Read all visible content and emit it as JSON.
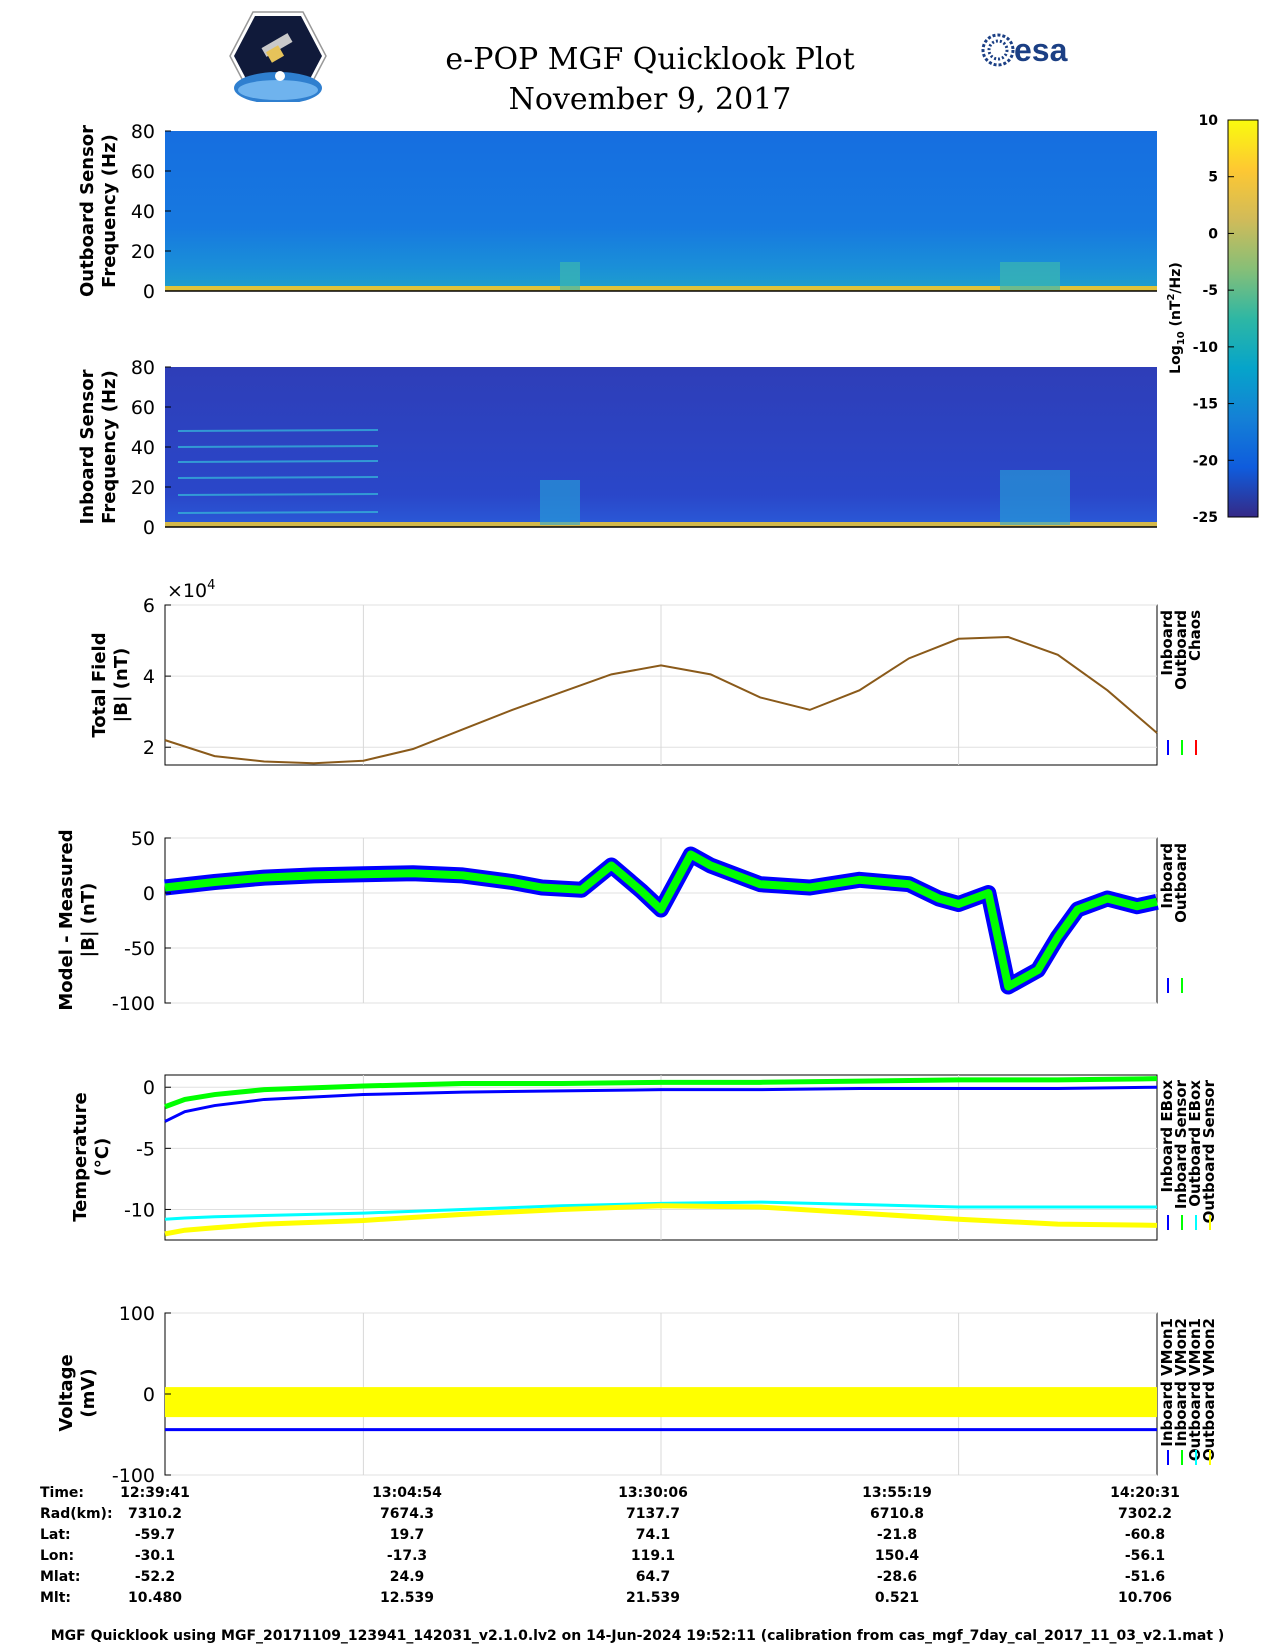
{
  "header": {
    "title": "e-POP MGF Quicklook Plot",
    "date": "November 9, 2017",
    "esa_logo_text": "esa"
  },
  "colorbar": {
    "label_base": "Log",
    "label_sub": "10",
    "label_unit_pre": " (nT",
    "label_sup": "2",
    "label_unit_post": "/Hz)",
    "ticks": [
      "10",
      "5",
      "0",
      "-5",
      "-10",
      "-15",
      "-20",
      "-25"
    ],
    "colors": [
      "#352a87",
      "#0f5cdd",
      "#1481d6",
      "#06a4ca",
      "#2eb7a4",
      "#87bf77",
      "#d1bb59",
      "#fec832",
      "#f9fb0e"
    ]
  },
  "chart_data": [
    {
      "type": "heatmap",
      "name": "outboard-spectrogram",
      "ylabel_line1": "Outboard Sensor",
      "ylabel_line2": "Frequency (Hz)",
      "ylim": [
        0,
        80
      ],
      "yticks": [
        "0",
        "20",
        "40",
        "60",
        "80"
      ],
      "clim": [
        -25,
        10
      ]
    },
    {
      "type": "heatmap",
      "name": "inboard-spectrogram",
      "ylabel_line1": "Inboard Sensor",
      "ylabel_line2": "Frequency (Hz)",
      "ylim": [
        0,
        80
      ],
      "yticks": [
        "0",
        "20",
        "40",
        "60",
        "80"
      ],
      "clim": [
        -25,
        10
      ]
    },
    {
      "type": "line",
      "name": "total-field",
      "ylabel_line1": "Total Field",
      "ylabel_line2": "|B| (nT)",
      "exponent_prefix": "×10",
      "exponent_power": "4",
      "ylim": [
        1.5,
        6
      ],
      "yticks": [
        "2",
        "4",
        "6"
      ],
      "legend": [
        "Inboard",
        "Outboard",
        "Chaos"
      ],
      "legend_colors": [
        "#0000ff",
        "#00ff00",
        "#ff0000"
      ],
      "x_frac": [
        0,
        0.05,
        0.1,
        0.15,
        0.2,
        0.25,
        0.3,
        0.35,
        0.4,
        0.45,
        0.5,
        0.55,
        0.6,
        0.65,
        0.7,
        0.75,
        0.8,
        0.85,
        0.9,
        0.95,
        1.0
      ],
      "series": [
        {
          "name": "Chaos",
          "values": [
            2.2,
            1.75,
            1.6,
            1.55,
            1.62,
            1.95,
            2.5,
            3.05,
            3.55,
            4.05,
            4.3,
            4.05,
            3.4,
            3.05,
            3.6,
            4.5,
            5.05,
            5.1,
            4.6,
            3.6,
            2.4
          ]
        }
      ]
    },
    {
      "type": "line",
      "name": "model-minus-measured",
      "ylabel_line1": "Model - Measured",
      "ylabel_line2": "|B| (nT)",
      "ylim": [
        -100,
        50
      ],
      "yticks": [
        "50",
        "0",
        "-50",
        "-100"
      ],
      "legend": [
        "Inboard",
        "Outboard"
      ],
      "legend_colors": [
        "#0000ff",
        "#00ff00"
      ],
      "x_frac": [
        0,
        0.05,
        0.1,
        0.15,
        0.2,
        0.25,
        0.3,
        0.35,
        0.38,
        0.42,
        0.45,
        0.48,
        0.5,
        0.53,
        0.55,
        0.6,
        0.65,
        0.7,
        0.75,
        0.78,
        0.8,
        0.83,
        0.85,
        0.88,
        0.9,
        0.92,
        0.95,
        0.98,
        1.0
      ],
      "series": [
        {
          "name": "Outboard",
          "values": [
            5,
            10,
            14,
            16,
            17,
            18,
            16,
            10,
            5,
            3,
            25,
            2,
            -15,
            35,
            25,
            8,
            5,
            12,
            8,
            -5,
            -10,
            0,
            -85,
            -70,
            -40,
            -15,
            -5,
            -12,
            -8
          ]
        }
      ]
    },
    {
      "type": "line",
      "name": "temperature",
      "ylabel_line1": "Temperature",
      "ylabel_line2": "(°C)",
      "ylim": [
        -12.5,
        1
      ],
      "yticks": [
        "0",
        "-5",
        "-10"
      ],
      "legend": [
        "Inboard EBox",
        "Inboard Sensor",
        "Outboard EBox",
        "Outboard Sensor"
      ],
      "legend_colors": [
        "#0000ff",
        "#00ff00",
        "#00ffff",
        "#ffff00"
      ],
      "x_frac": [
        0,
        0.02,
        0.05,
        0.1,
        0.2,
        0.3,
        0.4,
        0.5,
        0.6,
        0.7,
        0.8,
        0.9,
        1.0
      ],
      "series": [
        {
          "name": "Inboard EBox",
          "values": [
            -2.8,
            -2.0,
            -1.5,
            -1.0,
            -0.6,
            -0.4,
            -0.3,
            -0.2,
            -0.2,
            -0.1,
            -0.1,
            -0.1,
            0.0
          ]
        },
        {
          "name": "Inboard Sensor",
          "values": [
            -1.6,
            -1.0,
            -0.6,
            -0.2,
            0.1,
            0.3,
            0.3,
            0.4,
            0.4,
            0.5,
            0.6,
            0.6,
            0.7
          ]
        },
        {
          "name": "Outboard EBox",
          "values": [
            -10.8,
            -10.7,
            -10.6,
            -10.5,
            -10.3,
            -10.0,
            -9.7,
            -9.5,
            -9.4,
            -9.6,
            -9.8,
            -9.8,
            -9.8
          ]
        },
        {
          "name": "Outboard Sensor",
          "values": [
            -12.0,
            -11.7,
            -11.5,
            -11.2,
            -10.9,
            -10.4,
            -10.0,
            -9.7,
            -9.8,
            -10.3,
            -10.8,
            -11.2,
            -11.3
          ]
        }
      ]
    },
    {
      "type": "line",
      "name": "voltage",
      "ylabel_line1": "Voltage",
      "ylabel_line2": "(mV)",
      "ylim": [
        -100,
        100
      ],
      "yticks": [
        "100",
        "0",
        "-100"
      ],
      "legend": [
        "Inboard VMon1",
        "Inboard VMon2",
        "Outboard VMon1",
        "Outboard VMon2"
      ],
      "legend_colors": [
        "#0000ff",
        "#00ff00",
        "#00ffff",
        "#ffff00"
      ],
      "x_frac": [
        0,
        1
      ],
      "series": [
        {
          "name": "Inboard VMon1",
          "values": [
            -44,
            -44
          ]
        },
        {
          "name": "Outboard VMon2",
          "values": [
            -10,
            -10
          ]
        }
      ]
    }
  ],
  "info_table": {
    "rows": [
      {
        "label": "Time:",
        "values": [
          "12:39:41",
          "13:04:54",
          "13:30:06",
          "13:55:19",
          "14:20:31"
        ]
      },
      {
        "label": "Rad(km):",
        "values": [
          "7310.2",
          "7674.3",
          "7137.7",
          "6710.8",
          "7302.2"
        ]
      },
      {
        "label": "Lat:",
        "values": [
          "-59.7",
          "19.7",
          "74.1",
          "-21.8",
          "-60.8"
        ]
      },
      {
        "label": "Lon:",
        "values": [
          "-30.1",
          "-17.3",
          "119.1",
          "150.4",
          "-56.1"
        ]
      },
      {
        "label": "Mlat:",
        "values": [
          "-52.2",
          "24.9",
          "64.7",
          "-28.6",
          "-51.6"
        ]
      },
      {
        "label": "Mlt:",
        "values": [
          "10.480",
          "12.539",
          "21.539",
          "0.521",
          "10.706"
        ]
      }
    ]
  },
  "footer": "MGF Quicklook using MGF_20171109_123941_142031_v2.1.0.lv2 on 14-Jun-2024 19:52:11 (calibration from cas_mgf_7day_cal_2017_11_03_v2.1.mat )"
}
